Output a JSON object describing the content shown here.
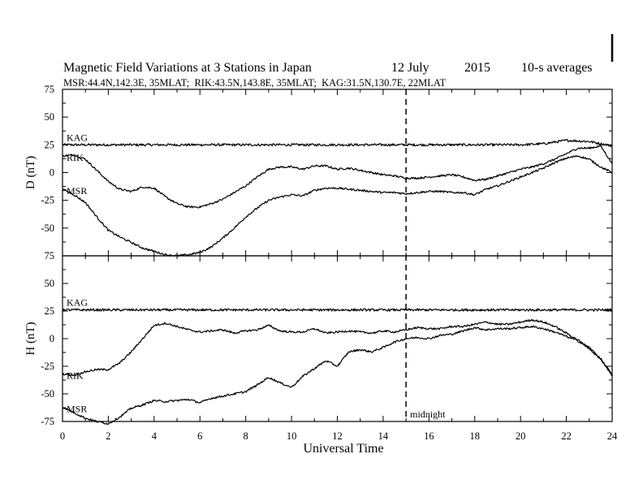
{
  "chart_data": {
    "type": "line",
    "title": "Magnetic Field Variations at 3 Stations in Japan",
    "date": "12 July",
    "year": "2015",
    "averaging": "10-s averages",
    "subtitle": "MSR:44.4N,142.3E, 35MLAT;  RIK:43.5N,143.8E, 35MLAT;  KAG:31.5N,130.7E, 22MLAT",
    "xlabel": "Universal Time",
    "xlim": [
      0,
      24
    ],
    "xticks": [
      0,
      2,
      4,
      6,
      8,
      10,
      12,
      14,
      16,
      18,
      20,
      22,
      24
    ],
    "annotation": {
      "x": 15,
      "label": "midnight"
    },
    "panels": [
      {
        "ylabel": "D (nT)",
        "ylim": [
          -75,
          75
        ],
        "yticks": [
          75,
          50,
          25,
          0,
          -25,
          -50,
          -75
        ],
        "series": [
          {
            "name": "KAG",
            "x": [
              0,
              2,
              4,
              6,
              8,
              10,
              12,
              14,
              16,
              18,
              20,
              21,
              22,
              23,
              24
            ],
            "values": [
              25,
              25,
              25,
              25,
              25,
              25,
              25,
              25,
              25,
              25,
              25,
              26,
              29,
              28,
              24
            ]
          },
          {
            "name": "RIK",
            "x": [
              0,
              0.5,
              1,
              1.5,
              2,
              2.5,
              3,
              3.5,
              4,
              4.5,
              5,
              5.5,
              6,
              6.5,
              7,
              7.5,
              8,
              8.5,
              9,
              9.5,
              10,
              10.5,
              11,
              11.5,
              12,
              12.5,
              13,
              13.5,
              14,
              14.5,
              15,
              15.5,
              16,
              16.5,
              17,
              17.5,
              18,
              18.5,
              19,
              19.5,
              20,
              20.5,
              21,
              21.5,
              22,
              22.5,
              23,
              23.5,
              24
            ],
            "values": [
              15,
              16,
              12,
              2,
              -8,
              -15,
              -17,
              -13,
              -14,
              -22,
              -28,
              -31,
              -31,
              -28,
              -24,
              -18,
              -12,
              -4,
              3,
              5,
              5,
              3,
              6,
              6,
              3,
              4,
              2,
              0,
              -2,
              -3,
              -5,
              -5,
              -4,
              -3,
              -2,
              -4,
              -7,
              -6,
              -3,
              0,
              3,
              5,
              8,
              12,
              17,
              22,
              22,
              24,
              8
            ]
          },
          {
            "name": "MSR",
            "x": [
              0,
              0.5,
              1,
              1.5,
              2,
              2.5,
              3,
              3.5,
              4,
              4.5,
              5,
              5.5,
              6,
              6.5,
              7,
              7.5,
              8,
              8.5,
              9,
              9.5,
              10,
              10.5,
              11,
              11.5,
              12,
              12.5,
              13,
              13.5,
              14,
              14.5,
              15,
              15.5,
              16,
              16.5,
              17,
              17.5,
              18,
              18.5,
              19,
              19.5,
              20,
              20.5,
              21,
              21.5,
              22,
              22.5,
              23,
              23.5,
              24
            ],
            "values": [
              -15,
              -20,
              -27,
              -40,
              -52,
              -58,
              -63,
              -68,
              -71,
              -74,
              -75,
              -74,
              -72,
              -67,
              -59,
              -50,
              -40,
              -32,
              -25,
              -22,
              -20,
              -21,
              -16,
              -14,
              -14,
              -15,
              -16,
              -17,
              -18,
              -18,
              -19,
              -18,
              -17,
              -17,
              -18,
              -18,
              -20,
              -15,
              -12,
              -8,
              -4,
              0,
              4,
              9,
              13,
              15,
              12,
              5,
              0
            ]
          }
        ]
      },
      {
        "ylabel": "H (nT)",
        "ylim": [
          -75,
          75
        ],
        "yticks": [
          75,
          50,
          25,
          0,
          -25,
          -50,
          -75
        ],
        "series": [
          {
            "name": "KAG",
            "x": [
              0,
              2,
              4,
              6,
              8,
              10,
              12,
              14,
              16,
              18,
              20,
              22,
              24
            ],
            "values": [
              26,
              26,
              26,
              26,
              26,
              26,
              26,
              26,
              26,
              26,
              26,
              26,
              26
            ]
          },
          {
            "name": "RIK",
            "x": [
              0,
              0.5,
              1,
              1.5,
              2,
              2.5,
              3,
              3.5,
              4,
              4.5,
              5,
              5.5,
              6,
              6.5,
              7,
              7.5,
              8,
              8.5,
              9,
              9.5,
              10,
              10.5,
              11,
              11.5,
              12,
              12.5,
              13,
              13.5,
              14,
              14.5,
              15,
              15.5,
              16,
              16.5,
              17,
              17.5,
              18,
              18.5,
              19,
              19.5,
              20,
              20.5,
              21,
              21.5,
              22,
              22.5,
              23,
              23.5,
              24
            ],
            "values": [
              -32,
              -33,
              -30,
              -28,
              -28,
              -22,
              -12,
              0,
              12,
              14,
              11,
              8,
              6,
              7,
              8,
              5,
              7,
              8,
              12,
              7,
              6,
              6,
              9,
              5,
              6,
              7,
              6,
              5,
              7,
              6,
              8,
              10,
              9,
              9,
              11,
              11,
              13,
              15,
              13,
              13,
              15,
              17,
              15,
              11,
              5,
              -1,
              -9,
              -19,
              -32
            ]
          },
          {
            "name": "MSR",
            "x": [
              0,
              0.5,
              1,
              1.5,
              2,
              2.5,
              3,
              3.5,
              4,
              4.5,
              5,
              5.5,
              6,
              6.5,
              7,
              7.5,
              8,
              8.5,
              9,
              9.5,
              10,
              10.5,
              11,
              11.5,
              12,
              12.5,
              13,
              13.5,
              14,
              14.5,
              15,
              15.5,
              16,
              16.5,
              17,
              17.5,
              18,
              18.5,
              19,
              19.5,
              20,
              20.5,
              21,
              21.5,
              22,
              22.5,
              23,
              23.5,
              24
            ],
            "values": [
              -62,
              -67,
              -72,
              -75,
              -77,
              -71,
              -63,
              -60,
              -56,
              -57,
              -56,
              -55,
              -58,
              -54,
              -52,
              -50,
              -48,
              -42,
              -35,
              -40,
              -44,
              -34,
              -27,
              -20,
              -25,
              -12,
              -10,
              -12,
              -8,
              -3,
              0,
              1,
              0,
              3,
              4,
              7,
              10,
              8,
              9,
              9,
              10,
              11,
              9,
              6,
              2,
              -2,
              -8,
              -18,
              -34
            ]
          }
        ]
      }
    ]
  }
}
